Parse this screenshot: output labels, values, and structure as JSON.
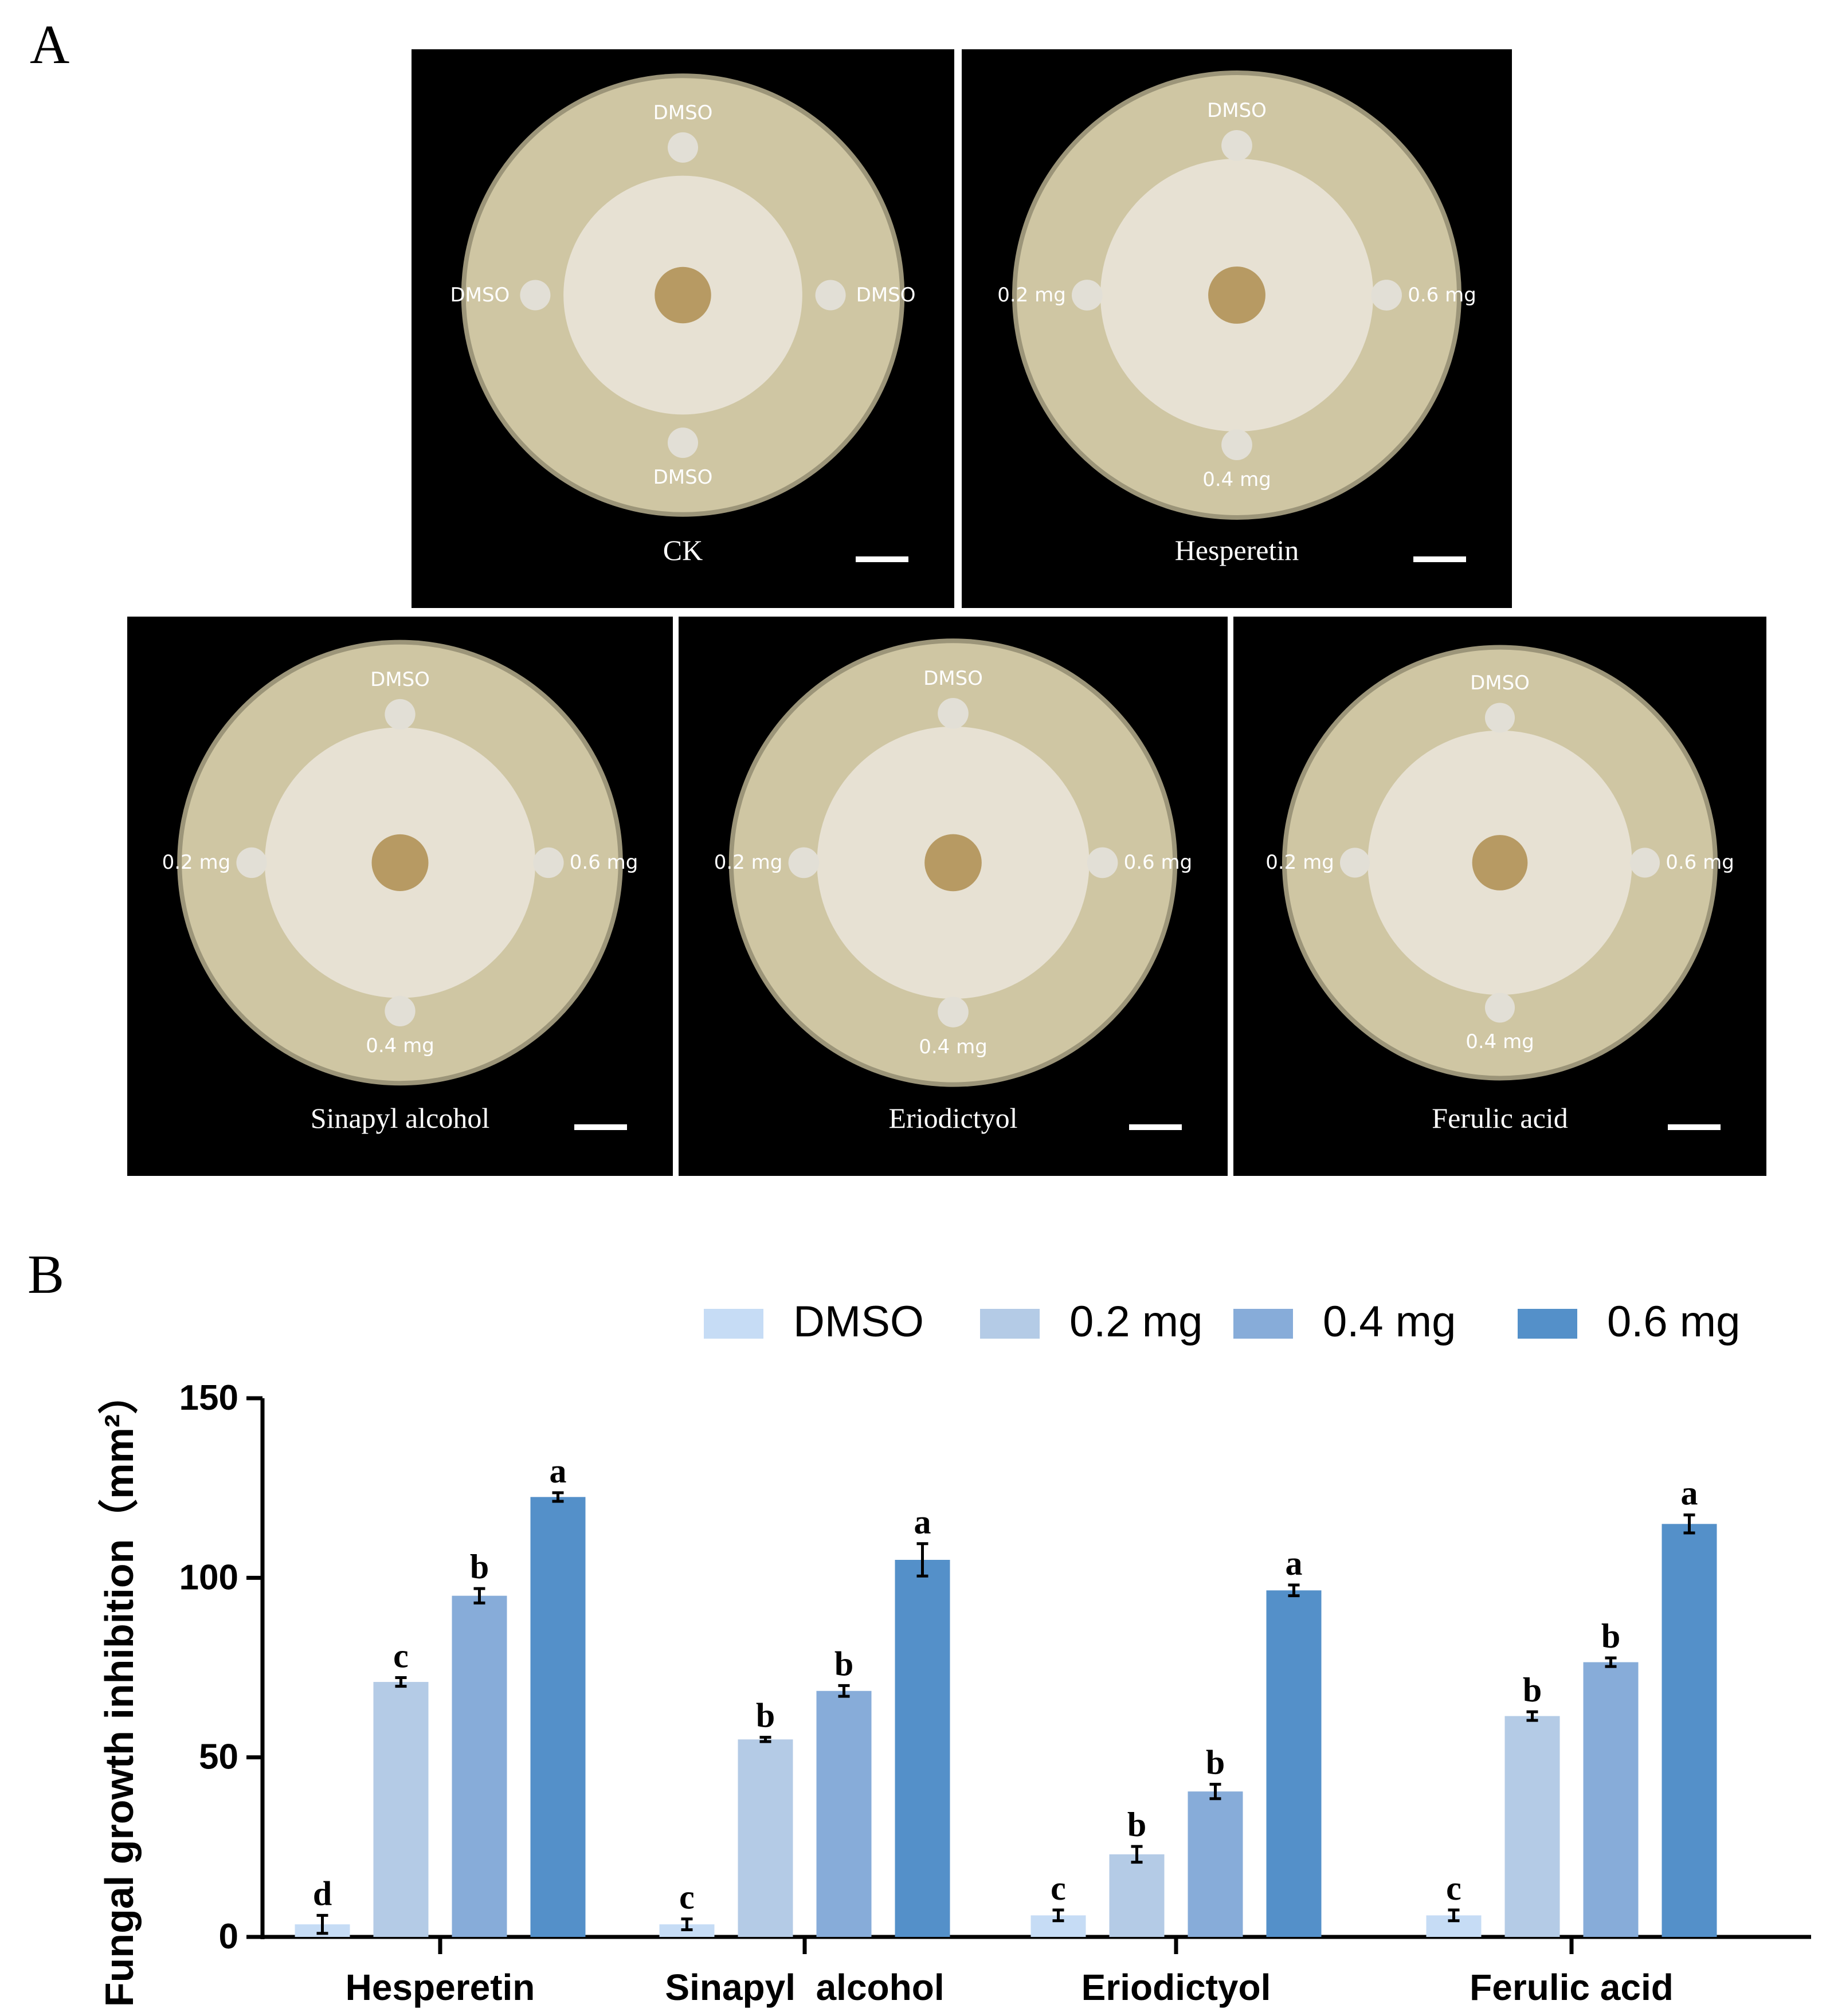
{
  "panel_a": {
    "letter": "A",
    "plates": [
      {
        "title": "CK",
        "labels": {
          "top": "DMSO",
          "left": "DMSO",
          "right": "DMSO",
          "bottom": "DMSO"
        }
      },
      {
        "title": "Hesperetin",
        "labels": {
          "top": "DMSO",
          "left": "0.2 mg",
          "right": "0.6 mg",
          "bottom": "0.4 mg"
        }
      },
      {
        "title": "Sinapyl  alcohol",
        "labels": {
          "top": "DMSO",
          "left": "0.2 mg",
          "right": "0.6 mg",
          "bottom": "0.4 mg"
        }
      },
      {
        "title": "Eriodictyol",
        "labels": {
          "top": "DMSO",
          "left": "0.2 mg",
          "right": "0.6 mg",
          "bottom": "0.4 mg"
        }
      },
      {
        "title": "Ferulic acid",
        "labels": {
          "top": "DMSO",
          "left": "0.2 mg",
          "right": "0.6 mg",
          "bottom": "0.4 mg"
        }
      }
    ],
    "colors": {
      "background": "#000000",
      "agar": "#cfc6a3",
      "mycelium": "#e8e3d6",
      "plug": "#b79a63",
      "disc": "#e2dfd6"
    }
  },
  "panel_b": {
    "letter": "B"
  },
  "chart_data": {
    "type": "bar",
    "title": "",
    "xlabel": "",
    "ylabel": "Fungal growth inhibition（mm²）",
    "ylim": [
      0,
      150
    ],
    "yticks": [
      0,
      50,
      100,
      150
    ],
    "categories": [
      "Hesperetin",
      "Sinapyl  alcohol",
      "Eriodictyol",
      "Ferulic acid"
    ],
    "legend_position": "top",
    "series": [
      {
        "name": "DMSO",
        "color": "#c6dcf5",
        "values": [
          3.5,
          3.5,
          6,
          6
        ],
        "errors": [
          2.5,
          1.5,
          1.5,
          1.5
        ],
        "letters": [
          "d",
          "c",
          "c",
          "c"
        ]
      },
      {
        "name": "0.2 mg",
        "color": "#b4cbe6",
        "values": [
          71,
          55,
          23,
          61.5
        ],
        "errors": [
          1.2,
          0.6,
          2.2,
          1.2
        ],
        "letters": [
          "c",
          "b",
          "b",
          "b"
        ]
      },
      {
        "name": "0.4 mg",
        "color": "#87acd9",
        "values": [
          95,
          68.5,
          40.5,
          76.5
        ],
        "errors": [
          2,
          1.5,
          2,
          1.2
        ],
        "letters": [
          "b",
          "b",
          "b",
          "b"
        ]
      },
      {
        "name": "0.6 mg",
        "color": "#5490c9",
        "values": [
          122.5,
          105,
          96.5,
          115
        ],
        "errors": [
          1.2,
          4.5,
          1.5,
          2.5
        ],
        "letters": [
          "a",
          "a",
          "a",
          "a"
        ]
      }
    ]
  }
}
